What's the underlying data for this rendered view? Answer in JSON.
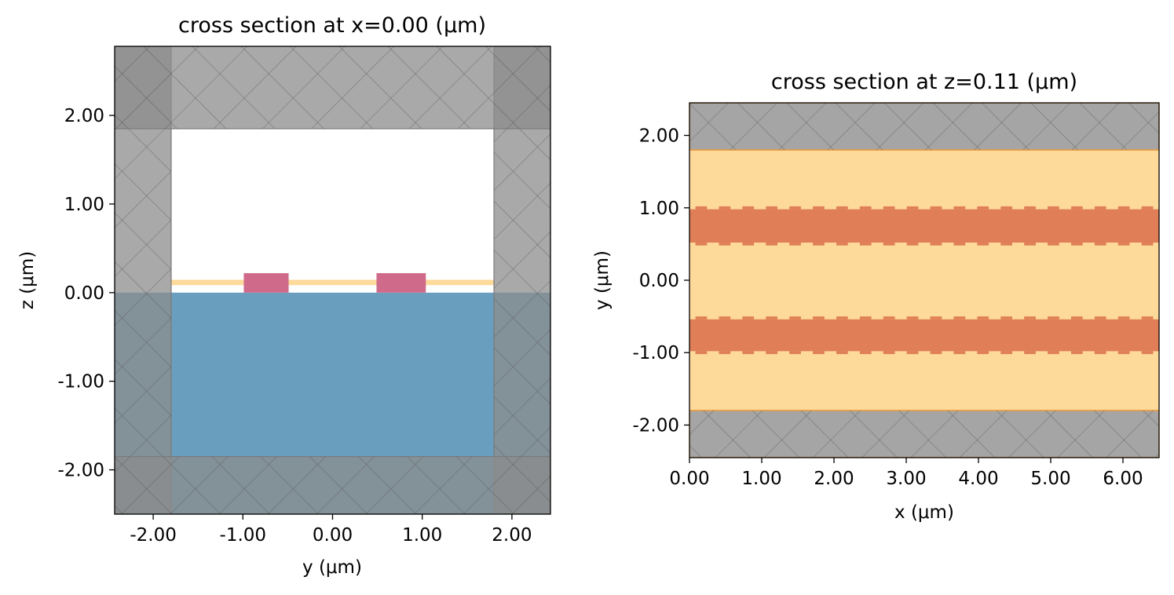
{
  "chart_data": [
    {
      "type": "cross-section",
      "title": "cross section at x=0.00 (μm)",
      "xlabel": "y (μm)",
      "ylabel": "z (μm)",
      "xlim": [
        -2.43,
        2.43
      ],
      "ylim": [
        -2.5,
        2.78
      ],
      "xticks": [
        -2,
        -1,
        0,
        1,
        2
      ],
      "xtick_labels": [
        "-2.00",
        "-1.00",
        "0.00",
        "1.00",
        "2.00"
      ],
      "yticks": [
        -2,
        -1,
        0,
        1,
        2
      ],
      "ytick_labels": [
        "-2.00",
        "-1.00",
        "0.00",
        "1.00",
        "2.00"
      ],
      "grid": false,
      "structures": [
        {
          "name": "substrate",
          "color": "#6a9ebe",
          "y": [
            -2.43,
            2.43
          ],
          "z": [
            -2.5,
            0.0
          ]
        },
        {
          "name": "thin-film",
          "color": "#fdd99a",
          "y": [
            -1.8,
            1.8
          ],
          "z": [
            0.085,
            0.145
          ]
        },
        {
          "name": "ridge-left",
          "color": "#cf6a8a",
          "y": [
            -0.99,
            -0.49
          ],
          "z": [
            0.0,
            0.22
          ]
        },
        {
          "name": "ridge-right",
          "color": "#cf6a8a",
          "y": [
            0.49,
            1.04
          ],
          "z": [
            0.0,
            0.22
          ]
        }
      ],
      "pml_regions": [
        {
          "name": "pml-left",
          "y": [
            -2.43,
            -1.8
          ],
          "z": [
            -2.5,
            2.78
          ]
        },
        {
          "name": "pml-right",
          "y": [
            1.8,
            2.43
          ],
          "z": [
            -2.5,
            2.78
          ]
        },
        {
          "name": "pml-top",
          "y": [
            -2.43,
            2.43
          ],
          "z": [
            1.85,
            2.78
          ]
        },
        {
          "name": "pml-bottom",
          "y": [
            -2.43,
            2.43
          ],
          "z": [
            -2.5,
            -1.85
          ]
        }
      ],
      "pml_color": "#8c8c8c"
    },
    {
      "type": "cross-section",
      "title": "cross section at z=0.11 (μm)",
      "xlabel": "x (μm)",
      "ylabel": "y (μm)",
      "xlim": [
        0.0,
        6.5
      ],
      "ylim": [
        -2.45,
        2.45
      ],
      "xticks": [
        0,
        1,
        2,
        3,
        4,
        5,
        6
      ],
      "xtick_labels": [
        "0.00",
        "1.00",
        "2.00",
        "3.00",
        "4.00",
        "5.00",
        "6.00"
      ],
      "yticks": [
        -2,
        -1,
        0,
        1,
        2
      ],
      "ytick_labels": [
        "-2.00",
        "-1.00",
        "0.00",
        "1.00",
        "2.00"
      ],
      "grid": false,
      "structures": [
        {
          "name": "film",
          "color": "#fdd99a",
          "x": [
            0.0,
            6.5
          ],
          "y": [
            -1.8,
            1.8
          ]
        },
        {
          "name": "waveguide-top",
          "color": "#e07f57",
          "x": [
            0.0,
            6.5
          ],
          "y": [
            0.52,
            0.98
          ],
          "teeth": {
            "period": 0.325,
            "width": 0.16,
            "depth": 0.04
          }
        },
        {
          "name": "waveguide-bottom",
          "color": "#e07f57",
          "x": [
            0.0,
            6.5
          ],
          "y": [
            -0.98,
            -0.54
          ],
          "teeth": {
            "period": 0.325,
            "width": 0.16,
            "depth": 0.04
          }
        }
      ],
      "pml_regions": [
        {
          "name": "pml-top",
          "x": [
            0.0,
            6.5
          ],
          "y": [
            1.8,
            2.45
          ]
        },
        {
          "name": "pml-bottom",
          "x": [
            0.0,
            6.5
          ],
          "y": [
            -2.45,
            -1.8
          ]
        }
      ],
      "pml_color": "#8c8c8c"
    }
  ]
}
